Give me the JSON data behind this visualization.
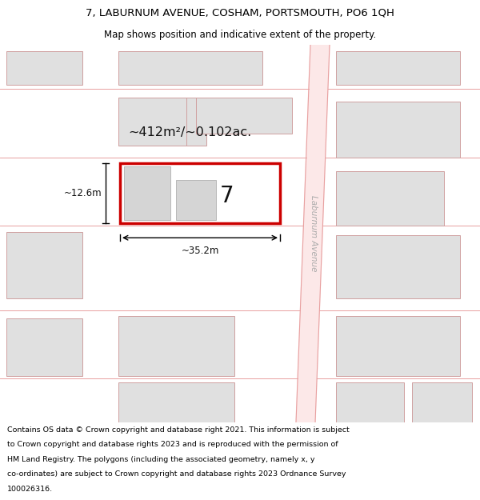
{
  "title": "7, LABURNUM AVENUE, COSHAM, PORTSMOUTH, PO6 1QH",
  "subtitle": "Map shows position and indicative extent of the property.",
  "footer": "Contains OS data © Crown copyright and database right 2021. This information is subject to Crown copyright and database rights 2023 and is reproduced with the permission of HM Land Registry. The polygons (including the associated geometry, namely x, y co-ordinates) are subject to Crown copyright and database rights 2023 Ordnance Survey 100026316.",
  "bg_color": "#ffffff",
  "map_bg": "#ffffff",
  "road_color": "#fce8e8",
  "road_line_color": "#e8a0a0",
  "building_fill": "#e0e0e0",
  "building_edge": "#d0a0a0",
  "highlight_edge": "#cc0000",
  "highlight_lw": 2.5,
  "area_text": "~412m²/~0.102ac.",
  "width_text": "~35.2m",
  "height_text": "~12.6m",
  "number_text": "7",
  "road_label": "Laburnum Avenue"
}
